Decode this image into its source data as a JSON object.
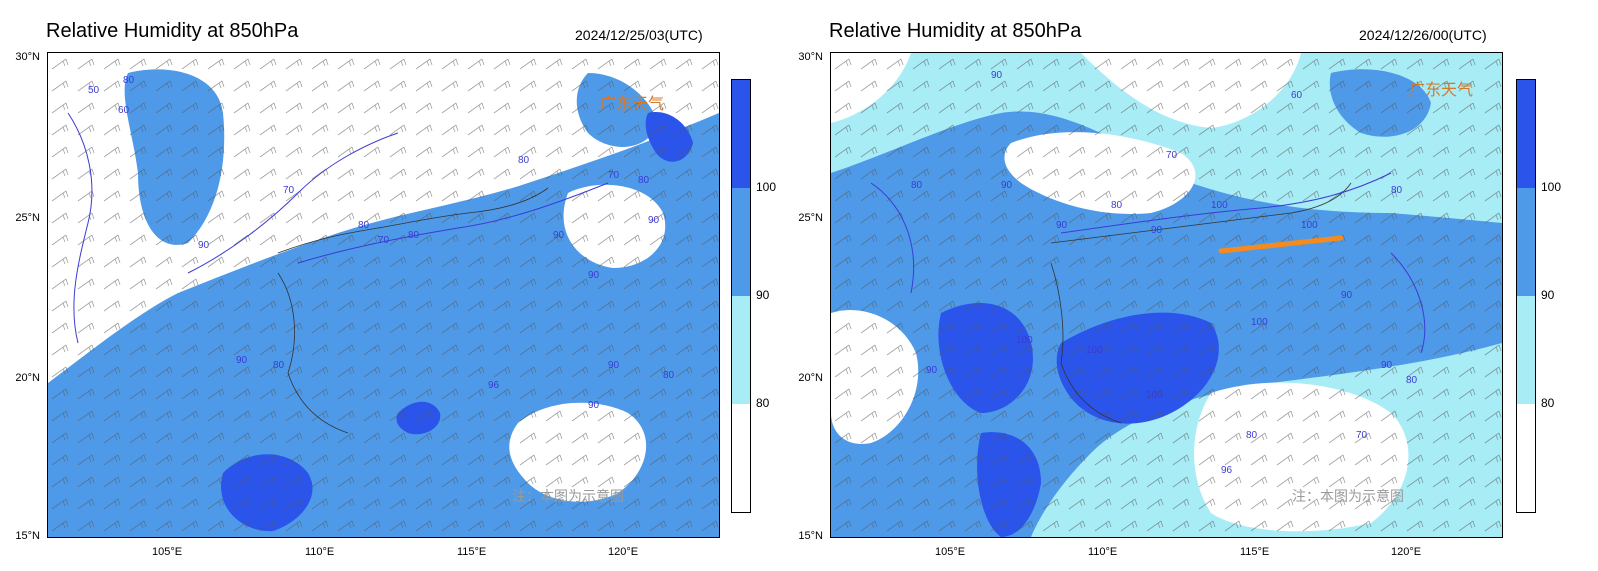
{
  "colors": {
    "band_lt_80": "#ffffff",
    "band_80_90": "#a8ecf6",
    "band_90_100": "#4e9ae8",
    "band_ge_100": "#2b54ea",
    "contour": "#3b3bd4",
    "highlight_line": "#f58a1f"
  },
  "panels": [
    {
      "title": "Relative Humidity at 850hPa",
      "time": "2024/12/25/03(UTC)",
      "y_ticks": [
        "30°N",
        "25°N",
        "20°N",
        "15°N"
      ],
      "x_ticks": [
        "105°E",
        "110°E",
        "115°E",
        "120°E"
      ],
      "colorbar_labels": [
        "100",
        "90",
        "80"
      ],
      "contour_labels": [
        "50",
        "60",
        "80",
        "90",
        "70",
        "80",
        "70",
        "80",
        "90",
        "80",
        "90",
        "70",
        "80",
        "90",
        "96",
        "90",
        "80",
        "90",
        "80",
        "90"
      ],
      "note": "注：本图为示意图",
      "logo": "广东天气"
    },
    {
      "title": "Relative Humidity at 850hPa",
      "time": "2024/12/26/00(UTC)",
      "y_ticks": [
        "30°N",
        "25°N",
        "20°N",
        "15°N"
      ],
      "x_ticks": [
        "105°E",
        "110°E",
        "115°E",
        "120°E"
      ],
      "colorbar_labels": [
        "100",
        "90",
        "80"
      ],
      "contour_labels": [
        "90",
        "60",
        "70",
        "80",
        "90",
        "80",
        "90",
        "90",
        "100",
        "100",
        "100",
        "100",
        "100",
        "80",
        "90",
        "90",
        "90",
        "80",
        "70",
        "80",
        "96",
        "100"
      ],
      "note": "注：本图为示意图",
      "logo": "广东天气"
    }
  ]
}
